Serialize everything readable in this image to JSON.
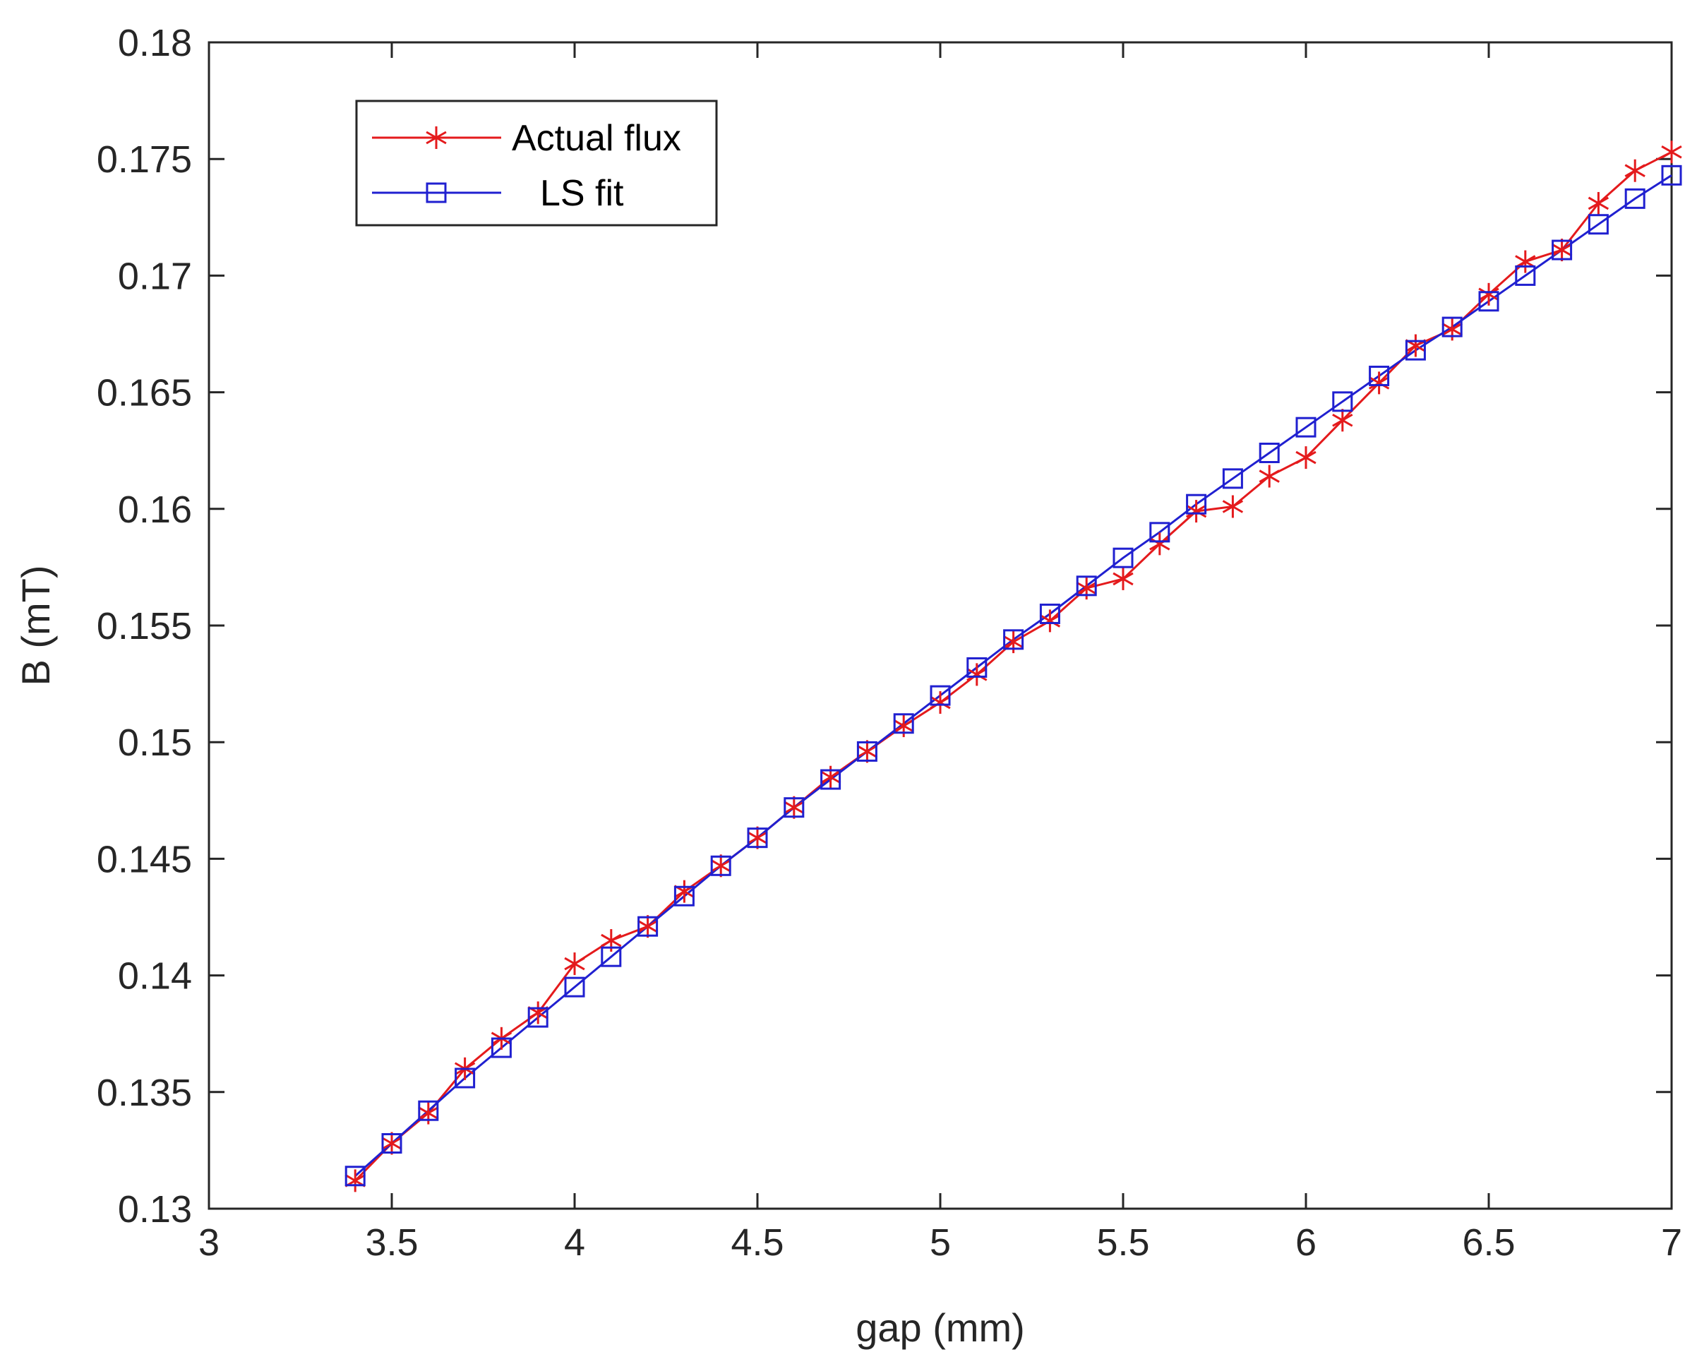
{
  "chart_data": {
    "type": "line",
    "title": "",
    "xlabel": "gap (mm)",
    "ylabel": "B (mT)",
    "xlim": [
      3,
      7
    ],
    "ylim": [
      0.13,
      0.18
    ],
    "x_ticks": [
      3,
      3.5,
      4,
      4.5,
      5,
      5.5,
      6,
      6.5,
      7
    ],
    "x_tick_labels": [
      "3",
      "3.5",
      "4",
      "4.5",
      "5",
      "5.5",
      "6",
      "6.5",
      "7"
    ],
    "y_ticks": [
      0.13,
      0.135,
      0.14,
      0.145,
      0.15,
      0.155,
      0.16,
      0.165,
      0.17,
      0.175,
      0.18
    ],
    "y_tick_labels": [
      "0.13",
      "0.135",
      "0.14",
      "0.145",
      "0.15",
      "0.155",
      "0.16",
      "0.165",
      "0.17",
      "0.175",
      "0.18"
    ],
    "grid": false,
    "legend_position": "top-left",
    "x": [
      3.4,
      3.5,
      3.6,
      3.7,
      3.8,
      3.9,
      4.0,
      4.1,
      4.2,
      4.3,
      4.4,
      4.5,
      4.6,
      4.7,
      4.8,
      4.9,
      5.0,
      5.1,
      5.2,
      5.3,
      5.4,
      5.5,
      5.6,
      5.7,
      5.8,
      5.9,
      6.0,
      6.1,
      6.2,
      6.3,
      6.4,
      6.5,
      6.6,
      6.7,
      6.8,
      6.9,
      7.0
    ],
    "series": [
      {
        "name": "Actual flux",
        "color": "#e41a1c",
        "marker": "asterisk",
        "values": [
          0.1312,
          0.1328,
          0.1341,
          0.136,
          0.1373,
          0.1384,
          0.1405,
          0.1415,
          0.1421,
          0.1436,
          0.1447,
          0.1459,
          0.1472,
          0.1485,
          0.1496,
          0.1507,
          0.1517,
          0.1529,
          0.1543,
          0.1552,
          0.1566,
          0.157,
          0.1585,
          0.1599,
          0.1601,
          0.1614,
          0.1622,
          0.1638,
          0.1654,
          0.167,
          0.1677,
          0.1692,
          0.1706,
          0.1711,
          0.1731,
          0.1745,
          0.1753
        ]
      },
      {
        "name": "LS fit",
        "color": "#2020d0",
        "marker": "square",
        "values": [
          0.1314,
          0.1328,
          0.1342,
          0.1356,
          0.1369,
          0.1382,
          0.1395,
          0.1408,
          0.1421,
          0.1434,
          0.1447,
          0.1459,
          0.1472,
          0.1484,
          0.1496,
          0.1508,
          0.152,
          0.1532,
          0.1544,
          0.1555,
          0.1567,
          0.1579,
          0.159,
          0.1602,
          0.1613,
          0.1624,
          0.1635,
          0.1646,
          0.1657,
          0.1668,
          0.1678,
          0.1689,
          0.17,
          0.1711,
          0.1722,
          0.1733,
          0.1743
        ]
      }
    ]
  }
}
